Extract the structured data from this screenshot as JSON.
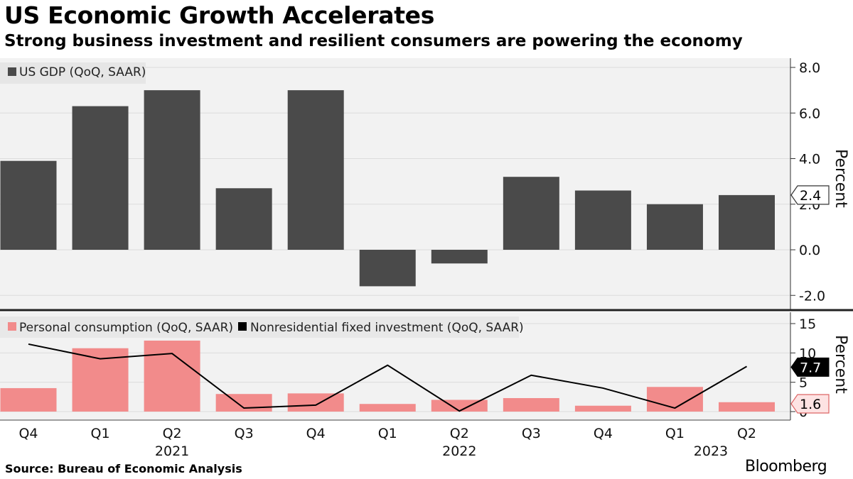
{
  "title": "US Economic Growth Accelerates",
  "subtitle": "Strong business investment and resilient consumers are powering the economy",
  "source": "Source: Bureau of Economic Analysis",
  "brand": "Bloomberg",
  "colors": {
    "gdp_bar": "#4a4a4a",
    "consumption_bar": "#f28b8b",
    "investment_line": "#000000",
    "panel_bg": "#f2f2f2",
    "grid": "#dcdcdc"
  },
  "chart_data": [
    {
      "type": "bar",
      "legend": [
        "US GDP (QoQ, SAAR)"
      ],
      "ylabel": "Percent",
      "ylim": [
        -2.5,
        8.5
      ],
      "yticks": [
        -2.0,
        0.0,
        2.0,
        4.0,
        6.0,
        8.0
      ],
      "ytick_labels": [
        "-2.0",
        "0.0",
        "2.0",
        "4.0",
        "6.0",
        "8.0"
      ],
      "grid": true,
      "legend_position": "top-left",
      "categories": [
        "Q4 2020",
        "Q1 2021",
        "Q2 2021",
        "Q3 2021",
        "Q4 2021",
        "Q1 2022",
        "Q2 2022",
        "Q3 2022",
        "Q4 2022",
        "Q1 2023",
        "Q2 2023"
      ],
      "series": [
        {
          "name": "US GDP (QoQ, SAAR)",
          "values": [
            3.9,
            6.3,
            7.0,
            2.7,
            7.0,
            -1.6,
            -0.6,
            3.2,
            2.6,
            2.0,
            2.4
          ]
        }
      ],
      "last_value_label": "2.4"
    },
    {
      "type": "bar",
      "legend": [
        "Personal consumption (QoQ, SAAR)",
        "Nonresidential fixed investment (QoQ, SAAR)"
      ],
      "ylabel": "Percent",
      "ylim": [
        -0.5,
        16
      ],
      "yticks": [
        0,
        5,
        10,
        15
      ],
      "ytick_labels": [
        "0",
        "5",
        "10",
        "15"
      ],
      "grid": true,
      "legend_position": "top-left",
      "categories": [
        "Q4 2020",
        "Q1 2021",
        "Q2 2021",
        "Q3 2021",
        "Q4 2021",
        "Q1 2022",
        "Q2 2022",
        "Q3 2022",
        "Q4 2022",
        "Q1 2023",
        "Q2 2023"
      ],
      "series": [
        {
          "name": "Personal consumption (QoQ, SAAR)",
          "type": "bar",
          "values": [
            4.0,
            10.8,
            12.1,
            3.0,
            3.1,
            1.3,
            2.0,
            2.3,
            1.0,
            4.2,
            1.6
          ]
        },
        {
          "name": "Nonresidential fixed investment (QoQ, SAAR)",
          "type": "line",
          "values": [
            11.5,
            9.0,
            9.9,
            0.6,
            1.1,
            7.9,
            0.1,
            6.2,
            4.0,
            0.6,
            7.7
          ]
        }
      ],
      "last_value_labels": [
        "7.7",
        "1.6"
      ]
    }
  ],
  "x_axis": {
    "quarter_labels": [
      "Q4",
      "Q1",
      "Q2",
      "Q3",
      "Q4",
      "Q1",
      "Q2",
      "Q3",
      "Q4",
      "Q1",
      "Q2"
    ],
    "year_labels": [
      {
        "label": "2021",
        "index": 2
      },
      {
        "label": "2022",
        "index": 6
      },
      {
        "label": "2023",
        "index": 9.5
      }
    ]
  }
}
